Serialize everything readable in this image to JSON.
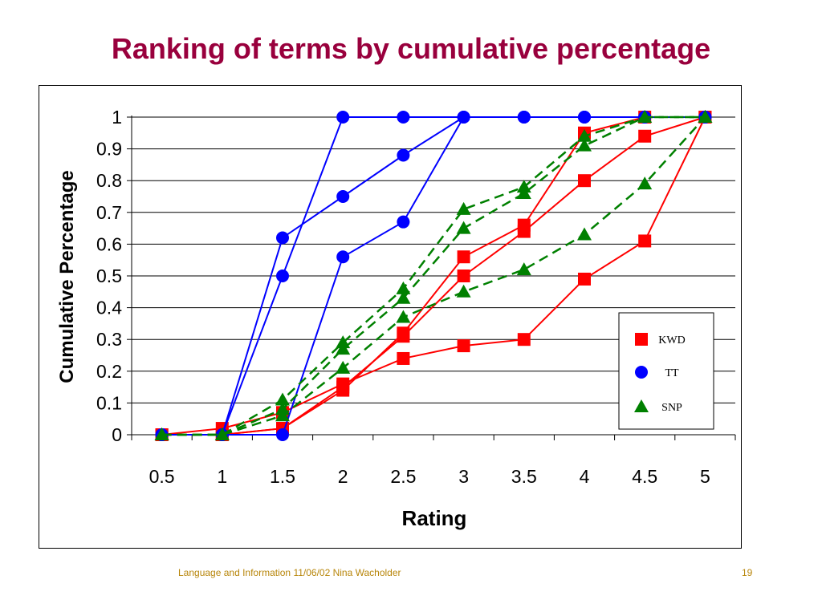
{
  "slide": {
    "title": "Ranking of terms by cumulative percentage",
    "footer_left": "Language and Information   11/06/02   Nina Wacholder",
    "page_number": "19"
  },
  "colors": {
    "title": "#99003d",
    "KWD": "#ff0000",
    "TT": "#0000ff",
    "SNP": "#008000",
    "footer": "#b8860b"
  },
  "chart_data": {
    "type": "line",
    "title": "",
    "xlabel": "Rating",
    "ylabel": "Cumulative Percentage",
    "x": [
      0.5,
      1,
      1.5,
      2,
      2.5,
      3,
      3.5,
      4,
      4.5,
      5
    ],
    "x_tick_labels": [
      "0.5",
      "1",
      "1.5",
      "2",
      "2.5",
      "3",
      "3.5",
      "4",
      "4.5",
      "5"
    ],
    "y_tick_labels": [
      "0",
      "0.1",
      "0.2",
      "0.3",
      "0.4",
      "0.5",
      "0.6",
      "0.7",
      "0.8",
      "0.9",
      "1"
    ],
    "ylim": [
      0,
      1
    ],
    "grid": "horizontal",
    "legend_position": "bottom-right",
    "legend": [
      {
        "name": "KWD",
        "marker": "square",
        "color": "#ff0000"
      },
      {
        "name": "TT",
        "marker": "circle",
        "color": "#0000ff"
      },
      {
        "name": "SNP",
        "marker": "triangle",
        "color": "#008000"
      }
    ],
    "series": [
      {
        "group": "KWD",
        "marker": "square",
        "color": "#ff0000",
        "dash": false,
        "values": [
          0,
          0.02,
          0.07,
          0.16,
          0.24,
          0.28,
          0.3,
          0.49,
          0.61,
          1.0
        ]
      },
      {
        "group": "KWD",
        "marker": "square",
        "color": "#ff0000",
        "dash": false,
        "values": [
          0,
          0,
          0.02,
          0.15,
          0.31,
          0.5,
          0.64,
          0.8,
          0.94,
          1.0
        ]
      },
      {
        "group": "KWD",
        "marker": "square",
        "color": "#ff0000",
        "dash": false,
        "values": [
          0,
          0,
          0.02,
          0.14,
          0.32,
          0.56,
          0.66,
          0.95,
          1.0,
          1.0
        ]
      },
      {
        "group": "TT",
        "marker": "circle",
        "color": "#0000ff",
        "dash": false,
        "values": [
          0,
          0,
          0.62,
          0.75,
          0.88,
          1.0,
          1.0,
          1.0,
          1.0,
          1.0
        ]
      },
      {
        "group": "TT",
        "marker": "circle",
        "color": "#0000ff",
        "dash": false,
        "values": [
          0,
          0,
          0.5,
          1.0,
          1.0,
          1.0,
          1.0,
          1.0,
          1.0,
          1.0
        ]
      },
      {
        "group": "TT",
        "marker": "circle",
        "color": "#0000ff",
        "dash": false,
        "values": [
          0,
          0,
          0,
          0.56,
          0.67,
          1.0,
          1.0,
          1.0,
          1.0,
          1.0
        ]
      },
      {
        "group": "SNP",
        "marker": "triangle",
        "color": "#008000",
        "dash": true,
        "values": [
          0,
          0,
          0.06,
          0.21,
          0.37,
          0.45,
          0.52,
          0.63,
          0.79,
          1.0
        ]
      },
      {
        "group": "SNP",
        "marker": "triangle",
        "color": "#008000",
        "dash": true,
        "values": [
          0,
          0,
          0.08,
          0.27,
          0.43,
          0.65,
          0.76,
          0.91,
          1.0,
          1.0
        ]
      },
      {
        "group": "SNP",
        "marker": "triangle",
        "color": "#008000",
        "dash": true,
        "values": [
          0,
          0,
          0.11,
          0.29,
          0.46,
          0.71,
          0.78,
          0.94,
          1.0,
          1.0
        ]
      }
    ]
  }
}
